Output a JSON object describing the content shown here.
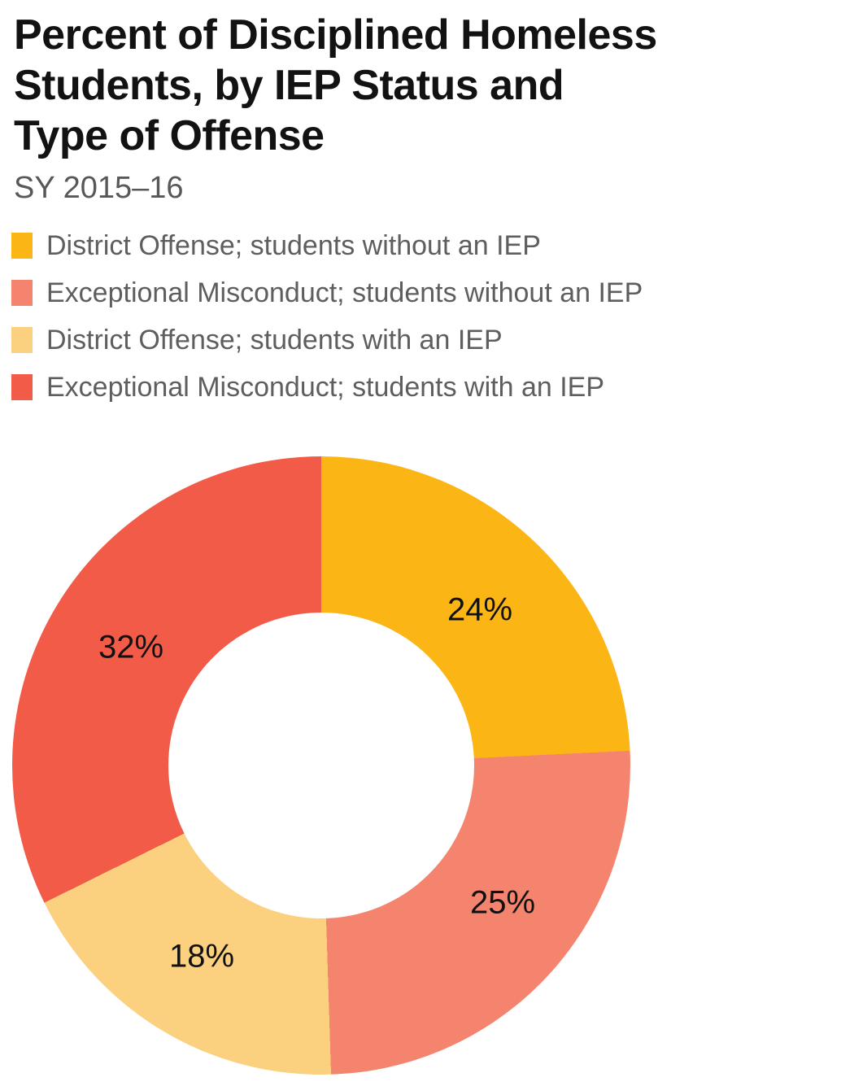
{
  "header": {
    "title": "Percent of Disciplined Homeless Students, by IEP Status and Type of Offense",
    "title_lines": [
      "Percent of Disciplined Homeless",
      "Students, by IEP Status and",
      "Type of Offense"
    ],
    "subtitle": "SY 2015–16"
  },
  "colors": {
    "background": "#FFFFFF",
    "title_text": "#121212",
    "subtitle_text": "#58585A",
    "legend_text": "#5E5E60",
    "slice_label_text": "#111111"
  },
  "chart_data": {
    "type": "pie",
    "subtype": "donut",
    "title": "Percent of Disciplined Homeless Students, by IEP Status and Type of Offense",
    "subtitle": "SY 2015–16",
    "unit": "%",
    "start_angle_deg": 0,
    "direction": "clockwise",
    "inner_radius_ratio": 0.49,
    "legend_position": "top-left",
    "labels_inside": true,
    "segments": [
      {
        "label": "District Offense; students without an IEP",
        "value": 24,
        "data_label": "24%",
        "color": "#FBB616"
      },
      {
        "label": "Exceptional Misconduct; students without an IEP",
        "value": 25,
        "data_label": "25%",
        "color": "#F5846E"
      },
      {
        "label": "District Offense; students with an IEP",
        "value": 18,
        "data_label": "18%",
        "color": "#FBD180"
      },
      {
        "label": "Exceptional Misconduct; students with an IEP",
        "value": 32,
        "data_label": "32%",
        "color": "#F15B47"
      }
    ]
  }
}
